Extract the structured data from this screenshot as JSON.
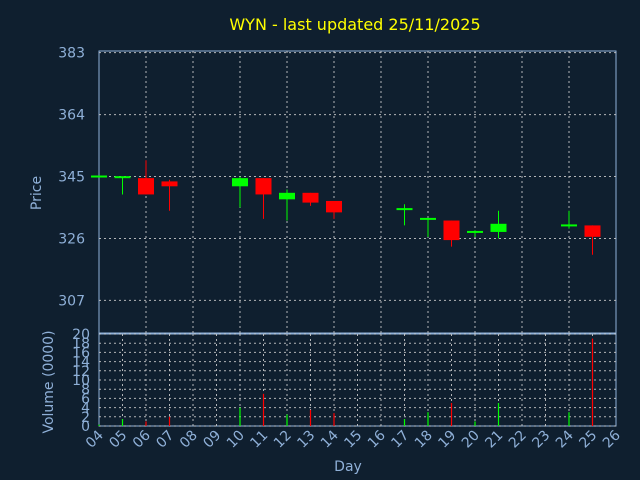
{
  "chart_data": [
    {
      "type": "candlestick",
      "title": "WYN - last updated 25/11/2025",
      "ylabel": "Price",
      "ylim": [
        297,
        383.5
      ],
      "yticks": [
        "383",
        "364",
        "345",
        "326",
        "307"
      ],
      "ytick_values": [
        383,
        364,
        345,
        326,
        307
      ],
      "grid": true,
      "colors": {
        "up": "#00ff00",
        "down": "#ff0000"
      },
      "candles": [
        {
          "day": "04",
          "open": 345,
          "close": 345,
          "high": 345,
          "low": 345
        },
        {
          "day": "05",
          "open": 344.5,
          "close": 344.8,
          "high": 345,
          "low": 339.5
        },
        {
          "day": "06",
          "open": 344.5,
          "close": 339.5,
          "high": 350,
          "low": 339.5
        },
        {
          "day": "07",
          "open": 343.5,
          "close": 342,
          "high": 344,
          "low": 334.5
        },
        {
          "day": "10",
          "open": 342,
          "close": 344.5,
          "high": 345,
          "low": 335.5
        },
        {
          "day": "11",
          "open": 344.5,
          "close": 339.5,
          "high": 344.5,
          "low": 332
        },
        {
          "day": "12",
          "open": 338,
          "close": 340,
          "high": 341,
          "low": 331.5
        },
        {
          "day": "13",
          "open": 340,
          "close": 337,
          "high": 340,
          "low": 336
        },
        {
          "day": "14",
          "open": 337.5,
          "close": 334,
          "high": 337.5,
          "low": 332
        },
        {
          "day": "17",
          "open": 335,
          "close": 335,
          "high": 336.5,
          "low": 330
        },
        {
          "day": "18",
          "open": 332,
          "close": 332,
          "high": 332,
          "low": 326.5
        },
        {
          "day": "19",
          "open": 331.5,
          "close": 325.5,
          "high": 331.5,
          "low": 323.5
        },
        {
          "day": "20",
          "open": 328,
          "close": 328,
          "high": 328.5,
          "low": 326.5
        },
        {
          "day": "21",
          "open": 328,
          "close": 330.5,
          "high": 334.5,
          "low": 326
        },
        {
          "day": "24",
          "open": 330,
          "close": 330,
          "high": 334.5,
          "low": 329
        },
        {
          "day": "25",
          "open": 330,
          "close": 326.5,
          "high": 330,
          "low": 321
        }
      ]
    },
    {
      "type": "bar",
      "ylabel": "Volume (0000)",
      "xlabel": "Day",
      "ylim": [
        0,
        20
      ],
      "yticks": [
        "20",
        "18",
        "16",
        "14",
        "12",
        "10",
        "8",
        "6",
        "4",
        "2",
        "0"
      ],
      "ytick_values": [
        20,
        18,
        16,
        14,
        12,
        10,
        8,
        6,
        4,
        2,
        0
      ],
      "grid": true,
      "categories": [
        "04",
        "05",
        "06",
        "07",
        "08",
        "09",
        "10",
        "11",
        "12",
        "13",
        "14",
        "15",
        "16",
        "17",
        "18",
        "19",
        "20",
        "21",
        "22",
        "23",
        "24",
        "25",
        "26"
      ],
      "bars": [
        {
          "day": "04",
          "value": 0.3,
          "color": "#00ff00"
        },
        {
          "day": "05",
          "value": 1.5,
          "color": "#00ff00"
        },
        {
          "day": "06",
          "value": 1.0,
          "color": "#ff0000"
        },
        {
          "day": "07",
          "value": 2.0,
          "color": "#ff0000"
        },
        {
          "day": "10",
          "value": 4.0,
          "color": "#00ff00"
        },
        {
          "day": "11",
          "value": 7.0,
          "color": "#ff0000"
        },
        {
          "day": "12",
          "value": 2.5,
          "color": "#00ff00"
        },
        {
          "day": "13",
          "value": 3.5,
          "color": "#ff0000"
        },
        {
          "day": "14",
          "value": 2.8,
          "color": "#ff0000"
        },
        {
          "day": "17",
          "value": 1.5,
          "color": "#00ff00"
        },
        {
          "day": "18",
          "value": 3.0,
          "color": "#00ff00"
        },
        {
          "day": "19",
          "value": 5.0,
          "color": "#ff0000"
        },
        {
          "day": "20",
          "value": 1.0,
          "color": "#00ff00"
        },
        {
          "day": "21",
          "value": 5.0,
          "color": "#00ff00"
        },
        {
          "day": "24",
          "value": 3.0,
          "color": "#00ff00"
        },
        {
          "day": "25",
          "value": 19.0,
          "color": "#ff0000"
        }
      ]
    }
  ]
}
